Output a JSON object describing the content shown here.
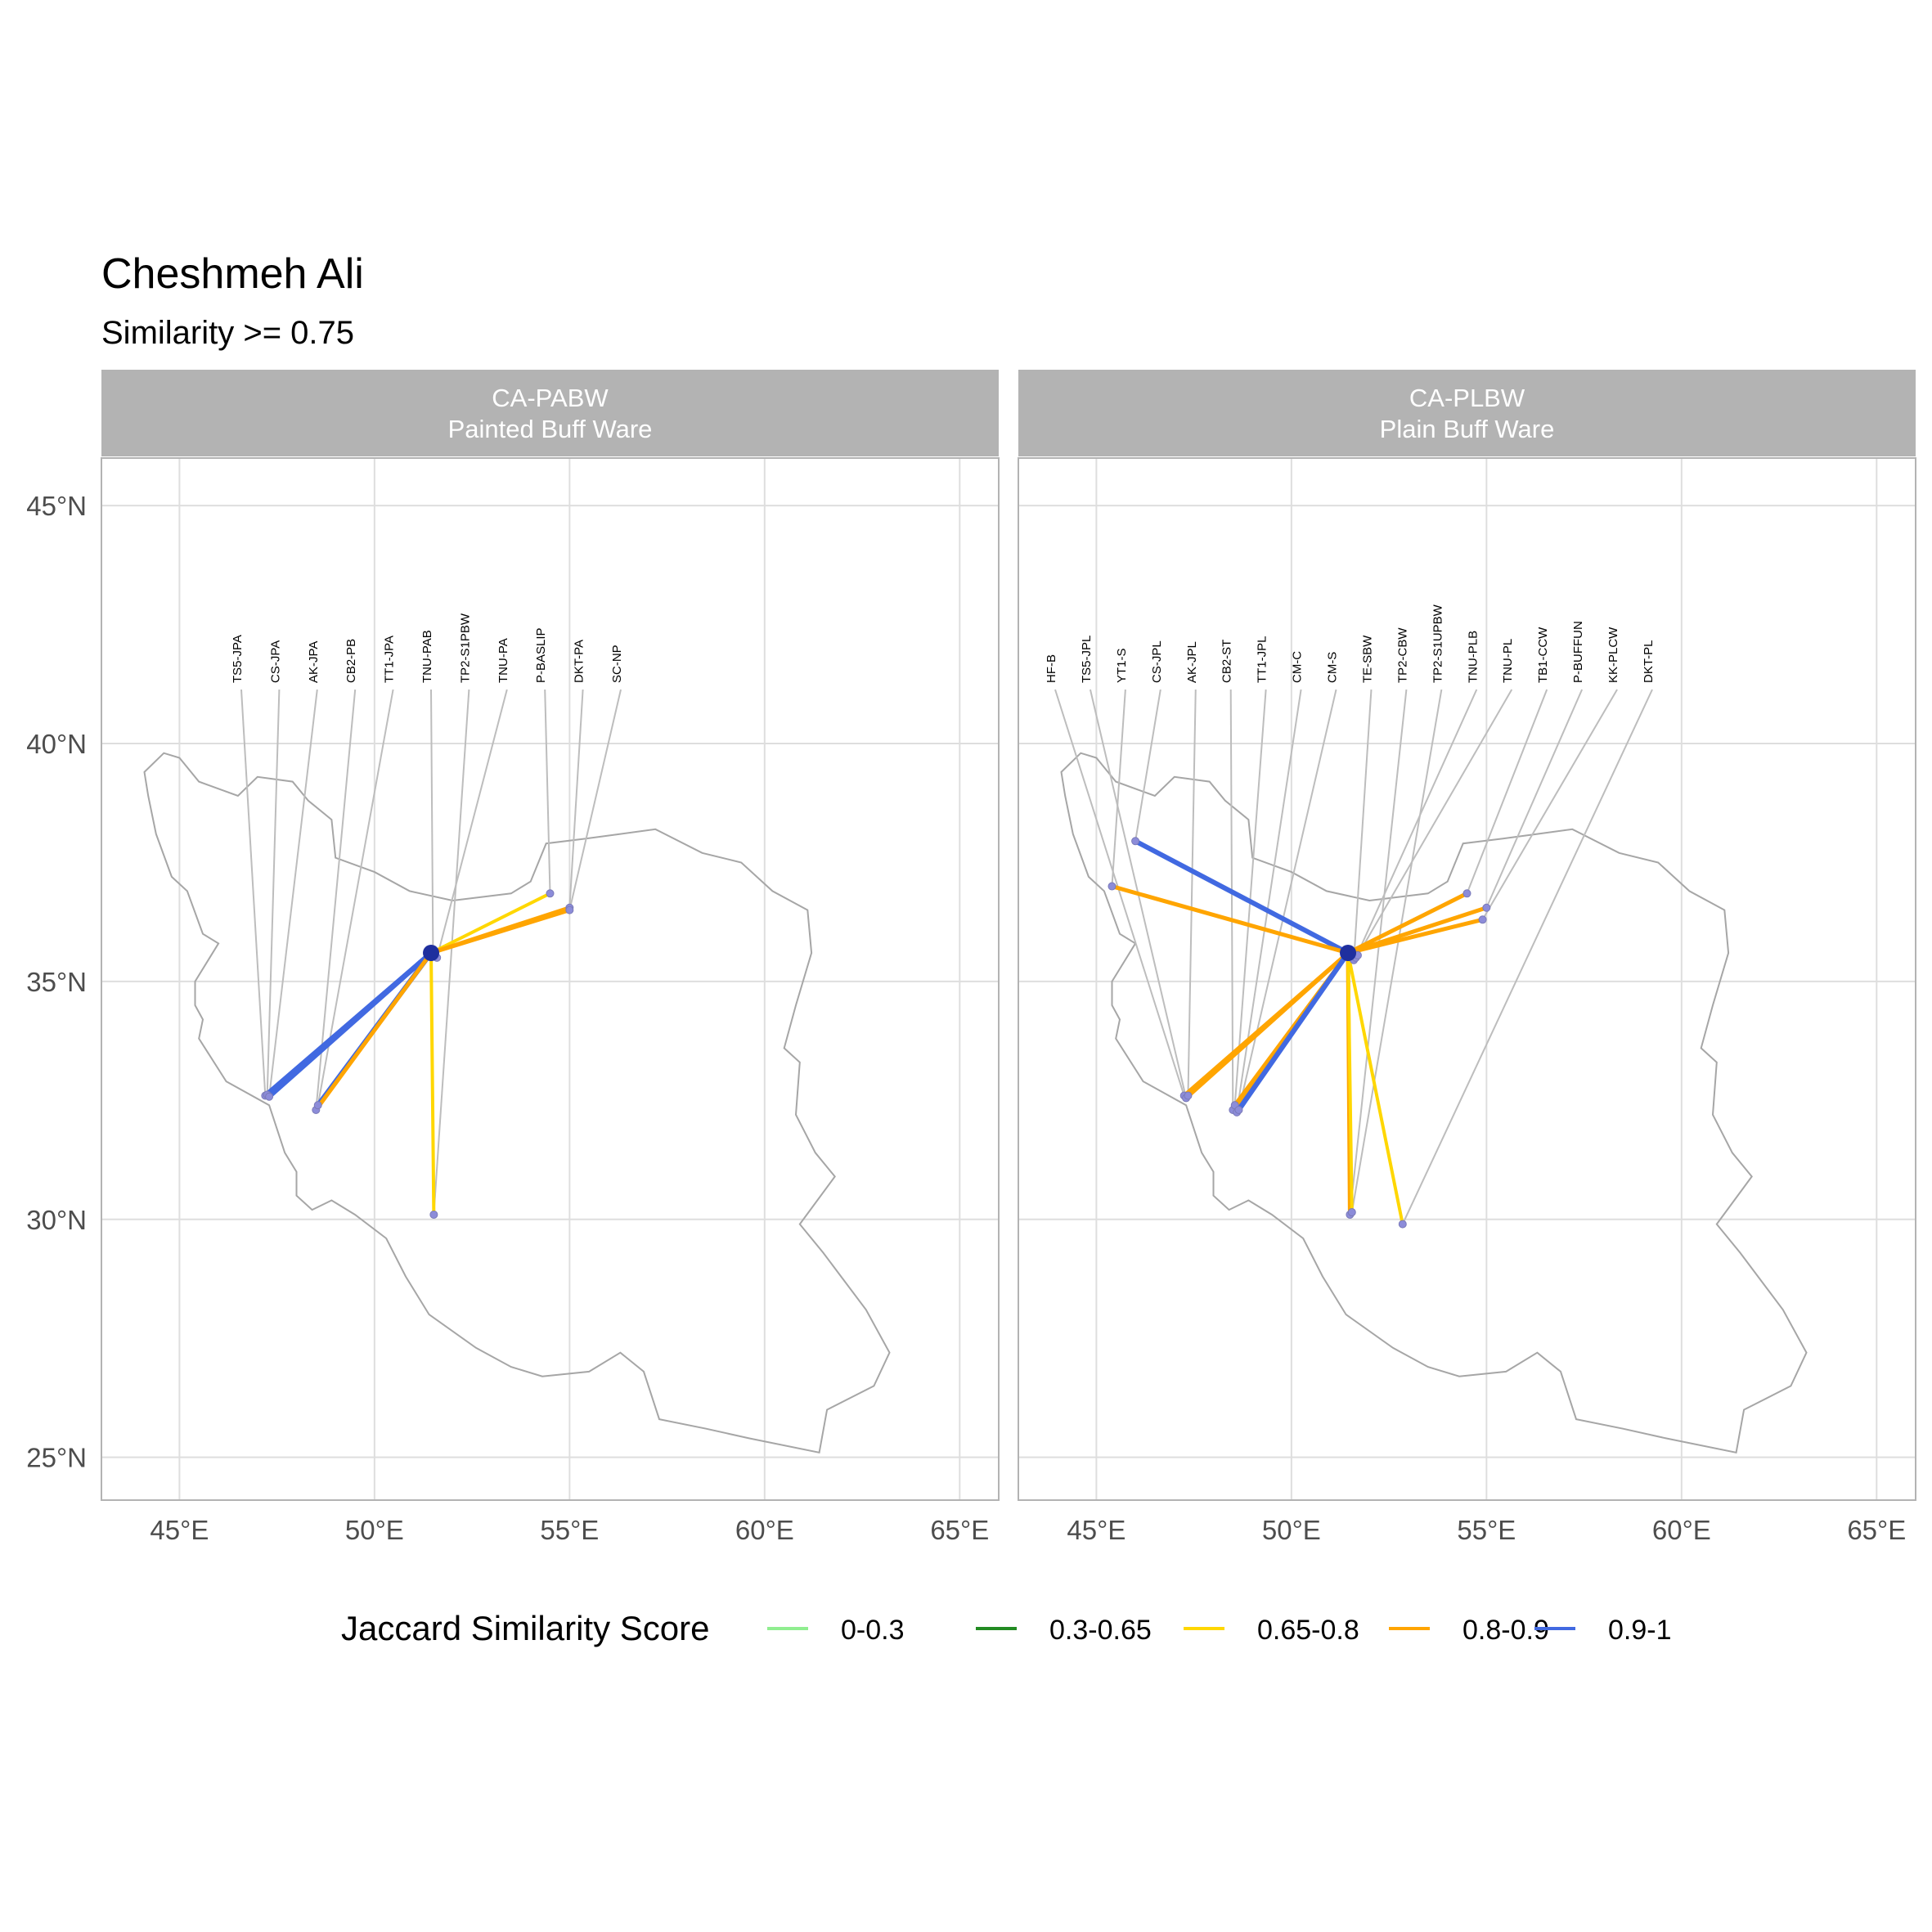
{
  "title": "Cheshmeh Ali",
  "subtitle": "Similarity >= 0.75",
  "legend": {
    "title": "Jaccard Similarity Score",
    "items": [
      {
        "label": "0-0.3",
        "color": "#90EE90"
      },
      {
        "label": "0.3-0.65",
        "color": "#228B22"
      },
      {
        "label": "0.65-0.8",
        "color": "#FFD700"
      },
      {
        "label": "0.8-0.9",
        "color": "#FFA500"
      },
      {
        "label": "0.9-1",
        "color": "#4169E1"
      }
    ]
  },
  "chart_data": {
    "type": "map",
    "x_ticks": [
      "45°E",
      "50°E",
      "55°E",
      "60°E",
      "65°E"
    ],
    "x_tick_values": [
      45,
      50,
      55,
      60,
      65
    ],
    "y_ticks": [
      "25°N",
      "30°N",
      "35°N",
      "40°N",
      "45°N"
    ],
    "y_tick_values": [
      25,
      30,
      35,
      40,
      45
    ],
    "xlim": [
      43,
      66
    ],
    "ylim": [
      24.1,
      46
    ],
    "grid": true,
    "legend_position": "bottom",
    "origin": {
      "lon": 51.45,
      "lat": 35.6
    },
    "panels": [
      {
        "strip": [
          "CA-PABW",
          "Painted Buff Ware"
        ],
        "sites": [
          {
            "label": "TS5-JPA",
            "lon": 47.2,
            "lat": 32.6
          },
          {
            "label": "CS-JPA",
            "lon": 47.25,
            "lat": 32.62
          },
          {
            "label": "AK-JPA",
            "lon": 47.3,
            "lat": 32.58
          },
          {
            "label": "CB2-PB",
            "lon": 48.5,
            "lat": 32.3
          },
          {
            "label": "TT1-JPA",
            "lon": 48.55,
            "lat": 32.4
          },
          {
            "label": "TNU-PAB",
            "lon": 51.5,
            "lat": 35.6
          },
          {
            "label": "TP2-S1PBW",
            "lon": 51.52,
            "lat": 30.1
          },
          {
            "label": "TNU-PA",
            "lon": 51.6,
            "lat": 35.5
          },
          {
            "label": "P-BASLIP",
            "lon": 54.5,
            "lat": 36.85
          },
          {
            "label": "DKT-PA",
            "lon": 55.0,
            "lat": 36.55
          },
          {
            "label": "SC-NP",
            "lon": 55.0,
            "lat": 36.5
          }
        ],
        "links": [
          {
            "to": "TS5-JPA",
            "band": "0.9-1"
          },
          {
            "to": "CS-JPA",
            "band": "0.9-1"
          },
          {
            "to": "AK-JPA",
            "band": "0.9-1"
          },
          {
            "to": "TT1-JPA",
            "band": "0.9-1"
          },
          {
            "to": "CB2-PB",
            "band": "0.8-0.9"
          },
          {
            "to": "TP2-S1PBW",
            "band": "0.65-0.8"
          },
          {
            "to": "P-BASLIP",
            "band": "0.65-0.8"
          },
          {
            "to": "DKT-PA",
            "band": "0.8-0.9"
          },
          {
            "to": "SC-NP",
            "band": "0.8-0.9"
          },
          {
            "to": "TNU-PA",
            "band": "0.8-0.9"
          }
        ]
      },
      {
        "strip": [
          "CA-PLBW",
          "Plain Buff Ware"
        ],
        "sites": [
          {
            "label": "HF-B",
            "lon": 47.25,
            "lat": 32.6
          },
          {
            "label": "TS5-JPL",
            "lon": 47.3,
            "lat": 32.55
          },
          {
            "label": "YT1-S",
            "lon": 45.4,
            "lat": 37.0
          },
          {
            "label": "CS-JPL",
            "lon": 46.0,
            "lat": 37.95
          },
          {
            "label": "AK-JPL",
            "lon": 47.35,
            "lat": 32.6
          },
          {
            "label": "CB2-ST",
            "lon": 48.5,
            "lat": 32.3
          },
          {
            "label": "TT1-JPL",
            "lon": 48.55,
            "lat": 32.4
          },
          {
            "label": "CM-C",
            "lon": 48.6,
            "lat": 32.25
          },
          {
            "label": "CM-S",
            "lon": 48.65,
            "lat": 32.3
          },
          {
            "label": "TE-SBW",
            "lon": 51.6,
            "lat": 35.45
          },
          {
            "label": "TP2-CBW",
            "lon": 51.5,
            "lat": 30.1
          },
          {
            "label": "TP2-S1UPBW",
            "lon": 51.55,
            "lat": 30.15
          },
          {
            "label": "TNU-PLB",
            "lon": 51.65,
            "lat": 35.5
          },
          {
            "label": "TNU-PL",
            "lon": 51.7,
            "lat": 35.55
          },
          {
            "label": "TB1-CCW",
            "lon": 54.5,
            "lat": 36.85
          },
          {
            "label": "P-BUFFUN",
            "lon": 55.0,
            "lat": 36.55
          },
          {
            "label": "KK-PLCW",
            "lon": 54.9,
            "lat": 36.3
          },
          {
            "label": "DKT-PL",
            "lon": 52.85,
            "lat": 29.9
          }
        ],
        "links": [
          {
            "to": "CS-JPL",
            "band": "0.9-1"
          },
          {
            "to": "YT1-S",
            "band": "0.8-0.9"
          },
          {
            "to": "HF-B",
            "band": "0.8-0.9"
          },
          {
            "to": "TS5-JPL",
            "band": "0.8-0.9"
          },
          {
            "to": "AK-JPL",
            "band": "0.8-0.9"
          },
          {
            "to": "CB2-ST",
            "band": "0.8-0.9"
          },
          {
            "to": "TT1-JPL",
            "band": "0.8-0.9"
          },
          {
            "to": "CM-C",
            "band": "0.9-1"
          },
          {
            "to": "CM-S",
            "band": "0.9-1"
          },
          {
            "to": "TP2-CBW",
            "band": "0.8-0.9"
          },
          {
            "to": "TP2-S1UPBW",
            "band": "0.65-0.8"
          },
          {
            "to": "DKT-PL",
            "band": "0.65-0.8"
          },
          {
            "to": "TB1-CCW",
            "band": "0.8-0.9"
          },
          {
            "to": "P-BUFFUN",
            "band": "0.8-0.9"
          },
          {
            "to": "KK-PLCW",
            "band": "0.8-0.9"
          },
          {
            "to": "TE-SBW",
            "band": "0.9-1"
          }
        ]
      }
    ]
  }
}
